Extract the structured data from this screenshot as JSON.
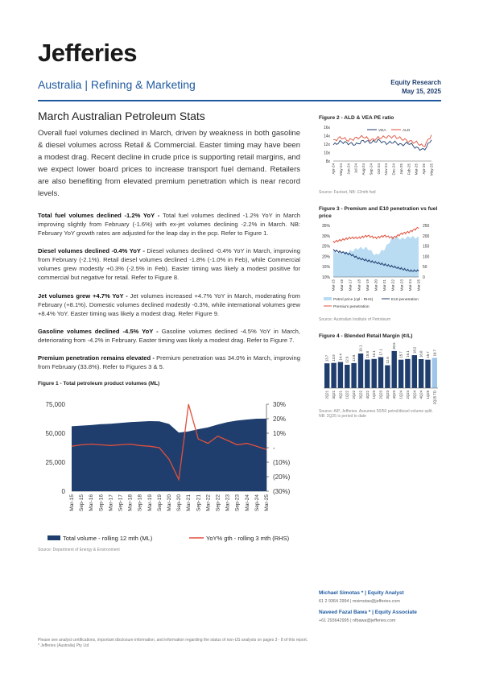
{
  "header": {
    "logo": "Jefferies",
    "section": "Australia | Refining & Marketing",
    "report_type": "Equity Research",
    "date": "May 15, 2025"
  },
  "title": "March Australian Petroleum Stats",
  "intro": "Overall fuel volumes declined in March, driven by weakness in both gasoline & diesel volumes across Retail & Commercial. Easter timing may have been a modest drag. Recent decline in crude price is supporting retail margins, and we expect lower board prices to increase transport fuel demand. Retailers are also benefiting from elevated premium penetration which is near record levels.",
  "paragraphs": [
    {
      "head": "Total fuel volumes declined -1.2% YoY - ",
      "body": "Total fuel volumes declined -1.2% YoY in March improving slightly from February (-1.6%) with ex-jet volumes declining -2.2% in March. NB: February YoY growth rates are adjusted for the leap day in the pcp. Refer to Figure 1."
    },
    {
      "head": "Diesel volumes declined -0.4% YoY - ",
      "body": "Diesel volumes declined -0.4% YoY in March, improving from February (-2.1%). Retail diesel volumes declined -1.8% (-1.0% in Feb), while Commercial volumes grew modestly +0.3% (-2.5% in Feb). Easter timing was likely a modest positive for commercial but negative for retail. Refer to Figure 8."
    },
    {
      "head": "Jet volumes grew +4.7% YoY - ",
      "body": "Jet volumes increased +4.7% YoY in March, moderating from February (+8.1%). Domestic volumes declined modestly -0.3%, while international volumes grew +8.4% YoY. Easter timing was likely a modest drag. Refer Figure 9."
    },
    {
      "head": "Gasoline volumes declined -4.5% YoY - ",
      "body": "Gasoline volumes declined -4.5% YoY in March, deteriorating from -4.2% in February. Easter timing was likely a modest drag. Refer to Figure 7."
    },
    {
      "head": "Premium penetration remains elevated - ",
      "body": "Premium penetration was 34.0% in March, improving from February (33.8%). Refer to Figures 3 & 5."
    }
  ],
  "chart_data": [
    {
      "id": "fig1",
      "type": "area",
      "title": "Figure 1 - Total petroleum product volumes (ML)",
      "x": [
        "Mar-15",
        "Sep-15",
        "Mar-16",
        "Sep-16",
        "Mar-17",
        "Sep-17",
        "Mar-18",
        "Sep-18",
        "Mar-19",
        "Sep-19",
        "Mar-20",
        "Sep-20",
        "Mar-21",
        "Sep-21",
        "Mar-22",
        "Sep-22",
        "Mar-23",
        "Sep-23",
        "Mar-24",
        "Sep-24",
        "Mar-25"
      ],
      "series": [
        {
          "name": "Total volume - rolling 12 mth (ML)",
          "axis": "left",
          "color": "#1f3e6e",
          "values": [
            56000,
            56500,
            57000,
            57800,
            58200,
            58800,
            59500,
            60000,
            60400,
            60200,
            58000,
            50500,
            51500,
            53500,
            55000,
            57500,
            59500,
            61000,
            61800,
            62500,
            62600
          ]
        },
        {
          "name": "YoY% gth - rolling 3 mth (RHS)",
          "axis": "right",
          "color": "#e0503c",
          "values": [
            1,
            2,
            2.5,
            2,
            1.5,
            2,
            2.5,
            1.5,
            1,
            0,
            -8,
            -22,
            30,
            6,
            3,
            8,
            5,
            2,
            3,
            1,
            -1.2
          ]
        }
      ],
      "yleft_ticks": [
        "75,000",
        "50,000",
        "25,000",
        "0"
      ],
      "yleft_range": [
        0,
        75000
      ],
      "yright_ticks": [
        "30%",
        "20%",
        "10%",
        "-",
        "(10%)",
        "(20%)",
        "(30%)"
      ],
      "yright_range": [
        -30,
        30
      ],
      "source": "Source: Department of Energy & Environment"
    },
    {
      "id": "fig2",
      "type": "line",
      "title": "Figure 2 - ALD & VEA PE ratio",
      "x": [
        "Apr-24",
        "May-24",
        "Jun-24",
        "Jul-24",
        "Aug-24",
        "Sep-24",
        "Oct-24",
        "Nov-24",
        "Dec-24",
        "Jan-25",
        "Feb-25",
        "Mar-25",
        "Apr-25",
        "May-25"
      ],
      "series": [
        {
          "name": "VEA",
          "color": "#1f3e6e",
          "values": [
            11.8,
            12.6,
            12.2,
            11.9,
            12.8,
            12.4,
            12.9,
            12.2,
            12.5,
            11.8,
            12.3,
            11.1,
            10.6,
            13.0
          ]
        },
        {
          "name": "ALD",
          "color": "#e0503c",
          "values": [
            12.8,
            13.6,
            12.9,
            13.4,
            13.8,
            12.9,
            13.5,
            13.7,
            13.8,
            13.3,
            12.7,
            12.4,
            11.4,
            14.2
          ]
        }
      ],
      "y_ticks": [
        "16x",
        "14x",
        "12x",
        "10x",
        "8x"
      ],
      "y_range": [
        8,
        16
      ],
      "source": "Source: Factset, NB: 12mth fwd"
    },
    {
      "id": "fig3",
      "type": "area",
      "title": "Figure 3 - Premium and E10 penetration vs fuel price",
      "x": [
        "Mar-15",
        "Mar-16",
        "Mar-17",
        "Mar-18",
        "Mar-19",
        "Mar-20",
        "Mar-21",
        "Mar-22",
        "Mar-23",
        "Mar-24",
        "Mar-25"
      ],
      "series": [
        {
          "name": "Petrol price (cpl - RHS)",
          "axis": "right",
          "color": "#b9dcf3",
          "values": [
            125,
            115,
            125,
            140,
            140,
            105,
            135,
            195,
            185,
            195,
            190
          ]
        },
        {
          "name": "E10 penetration",
          "axis": "left",
          "color": "#1f3e6e",
          "values": [
            23,
            22,
            21,
            19,
            18,
            17,
            16,
            15,
            14,
            13,
            13
          ]
        },
        {
          "name": "Premium penetration",
          "axis": "left",
          "color": "#e0503c",
          "values": [
            27,
            28,
            29,
            29,
            30,
            29,
            30,
            29,
            31,
            32,
            34
          ]
        }
      ],
      "yleft_ticks": [
        "35%",
        "30%",
        "25%",
        "20%",
        "15%",
        "10%"
      ],
      "yleft_range": [
        10,
        35
      ],
      "yright_ticks": [
        "250",
        "200",
        "150",
        "100",
        "50",
        "0"
      ],
      "yright_range": [
        0,
        250
      ],
      "source": "Source: Australian Institute of Petroleum"
    },
    {
      "id": "fig4",
      "type": "bar",
      "title": "Figure 4 - Blended Retail Margin (¢/L)",
      "categories": [
        "2Q21",
        "3Q21",
        "4Q21",
        "1Q22",
        "2Q22",
        "3Q22",
        "4Q22",
        "1Q23",
        "2Q23",
        "3Q23",
        "4Q23",
        "1Q24",
        "2Q24",
        "3Q24",
        "4Q24",
        "1Q25",
        "2Q25 TD"
      ],
      "values": [
        13.7,
        13.9,
        14.4,
        12.9,
        13.8,
        19.1,
        15.8,
        16.1,
        17.1,
        12.6,
        20.5,
        15.7,
        16.1,
        18.2,
        16.0,
        15.7,
        16.7
      ],
      "source": "Source: AIP, Jefferies. Assumes 50/50 petrol/diesel volume split. NB: 2Q25 is period to date"
    }
  ],
  "analysts": [
    {
      "name": "Michael Simotas *",
      "role": " | Equity Analyst",
      "contact": "61 2 9364 2994 | msimotas@jefferies.com"
    },
    {
      "name": "Naveed Fazal Bawa *",
      "role": " | Equity Associate",
      "contact": "+61 293642995 | nfbawa@jefferies.com"
    }
  ],
  "footer": {
    "line1": "Please see analyst certifications, important disclosure information, and information regarding the status of non-US analysts on pages 3 - 8 of this report.",
    "line2": "* Jefferies (Australia) Pty Ltd"
  }
}
